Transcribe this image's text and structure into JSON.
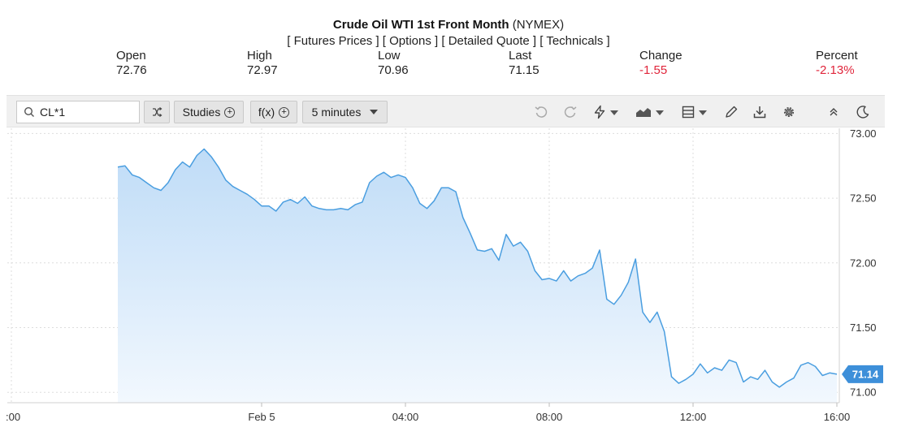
{
  "header": {
    "title": "Crude Oil WTI 1st Front Month",
    "exchange": "(NYMEX)",
    "links": [
      "Futures Prices",
      "Options",
      "Detailed Quote",
      "Technicals"
    ]
  },
  "stats": {
    "open": {
      "label": "Open",
      "value": "72.76"
    },
    "high": {
      "label": "High",
      "value": "72.97"
    },
    "low": {
      "label": "Low",
      "value": "70.96"
    },
    "last": {
      "label": "Last",
      "value": "71.15"
    },
    "change": {
      "label": "Change",
      "value": "-1.55"
    },
    "percent": {
      "label": "Percent",
      "value": "-2.13%"
    }
  },
  "toolbar": {
    "symbol": "CL*1",
    "studies_label": "Studies",
    "fx_label": "f(x)",
    "interval_label": "5 minutes",
    "icons": [
      "search-icon",
      "compare-icon",
      "undo-icon",
      "redo-icon",
      "lightning-icon",
      "chart-type-icon",
      "layout-icon",
      "pencil-icon",
      "download-icon",
      "settings-icon",
      "collapse-icon",
      "dark-mode-icon"
    ]
  },
  "colors": {
    "line": "#4a9ee0",
    "fill_top": "#bfdcf7",
    "fill_bottom": "#f2f8fe",
    "negative": "#e0253b",
    "last_badge": "#3d8fd9",
    "grid": "#dddddd"
  },
  "chart_data": {
    "type": "area",
    "x_ticks": [
      ":00",
      "Feb 5",
      "04:00",
      "08:00",
      "12:00",
      "16:00"
    ],
    "y_ticks": [
      "73.00",
      "72.50",
      "72.00",
      "71.50",
      "71.00"
    ],
    "ylim": [
      70.92,
      73.04
    ],
    "grid": true,
    "last_label": "71.14",
    "x": [
      -4.0,
      -3.8,
      -3.6,
      -3.4,
      -3.2,
      -3.0,
      -2.8,
      -2.6,
      -2.4,
      -2.2,
      -2.0,
      -1.8,
      -1.6,
      -1.4,
      -1.2,
      -1.0,
      -0.8,
      -0.6,
      -0.4,
      -0.2,
      0.0,
      0.2,
      0.4,
      0.6,
      0.8,
      1.0,
      1.2,
      1.4,
      1.6,
      1.8,
      2.0,
      2.2,
      2.4,
      2.6,
      2.8,
      3.0,
      3.2,
      3.4,
      3.6,
      3.8,
      4.0,
      4.2,
      4.4,
      4.6,
      4.8,
      5.0,
      5.2,
      5.4,
      5.6,
      5.8,
      6.0,
      6.2,
      6.4,
      6.6,
      6.8,
      7.0,
      7.2,
      7.4,
      7.6,
      7.8,
      8.0,
      8.2,
      8.4,
      8.6,
      8.8,
      9.0,
      9.2,
      9.4,
      9.6,
      9.8,
      10.0,
      10.2,
      10.4,
      10.6,
      10.8,
      11.0,
      11.2,
      11.4,
      11.6,
      11.8,
      12.0,
      12.2,
      12.4,
      12.6,
      12.8,
      13.0,
      13.2,
      13.4,
      13.6,
      13.8,
      14.0,
      14.2,
      14.4,
      14.6,
      14.8,
      15.0,
      15.2,
      15.4,
      15.6,
      15.8,
      16.0
    ],
    "values": [
      72.74,
      72.75,
      72.68,
      72.66,
      72.62,
      72.58,
      72.56,
      72.62,
      72.72,
      72.78,
      72.74,
      72.83,
      72.88,
      72.82,
      72.74,
      72.64,
      72.59,
      72.56,
      72.53,
      72.49,
      72.44,
      72.44,
      72.4,
      72.47,
      72.49,
      72.46,
      72.51,
      72.44,
      72.42,
      72.41,
      72.41,
      72.42,
      72.41,
      72.45,
      72.47,
      72.62,
      72.67,
      72.7,
      72.66,
      72.68,
      72.66,
      72.58,
      72.46,
      72.42,
      72.48,
      72.58,
      72.58,
      72.55,
      72.35,
      72.23,
      72.1,
      72.09,
      72.11,
      72.02,
      72.22,
      72.13,
      72.16,
      72.09,
      71.94,
      71.87,
      71.88,
      71.86,
      71.94,
      71.86,
      71.9,
      71.92,
      71.96,
      72.1,
      71.72,
      71.68,
      71.75,
      71.85,
      72.03,
      71.62,
      71.54,
      71.62,
      71.47,
      71.12,
      71.07,
      71.1,
      71.14,
      71.22,
      71.15,
      71.19,
      71.17,
      71.25,
      71.23,
      71.08,
      71.12,
      71.1,
      71.17,
      71.08,
      71.04,
      71.08,
      71.11,
      71.21,
      71.23,
      71.2,
      71.13,
      71.15,
      71.14
    ]
  }
}
